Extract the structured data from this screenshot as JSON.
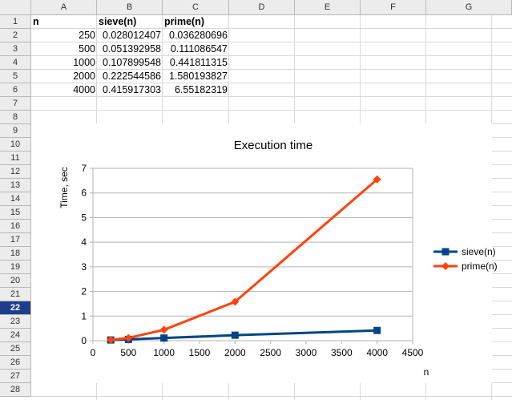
{
  "columns": [
    "A",
    "B",
    "C",
    "D",
    "E",
    "F",
    "G"
  ],
  "rows": [
    "1",
    "2",
    "3",
    "4",
    "5",
    "6",
    "7",
    "8",
    "9",
    "10",
    "11",
    "12",
    "13",
    "14",
    "15",
    "16",
    "17",
    "18",
    "19",
    "20",
    "21",
    "22",
    "23",
    "24",
    "25",
    "26",
    "27",
    "28"
  ],
  "active_row": "22",
  "cells": {
    "A1": "n",
    "B1": "sieve(n)",
    "C1": "prime(n)",
    "A2": "250",
    "B2": "0.028012407",
    "C2": "0.036280696",
    "A3": "500",
    "B3": "0.051392958",
    "C3": "0.111086547",
    "A4": "1000",
    "B4": "0.107899548",
    "C4": "0.441811315",
    "A5": "2000",
    "B5": "0.222544586",
    "C5": "1.580193827",
    "A6": "4000",
    "B6": "0.415917303",
    "C6": "6.55182319"
  },
  "chart_data": {
    "type": "line",
    "title": "Execution time",
    "xlabel": "n",
    "ylabel": "Time, sec",
    "xlim": [
      0,
      4500
    ],
    "ylim": [
      0,
      7
    ],
    "xticks": [
      "0",
      "500",
      "1000",
      "1500",
      "2000",
      "2500",
      "3000",
      "3500",
      "4000",
      "4500"
    ],
    "yticks": [
      "0",
      "1",
      "2",
      "3",
      "4",
      "5",
      "6",
      "7"
    ],
    "grid": true,
    "legend_position": "right",
    "x": [
      250,
      500,
      1000,
      2000,
      4000
    ],
    "series": [
      {
        "name": "sieve(n)",
        "values": [
          0.028012407,
          0.051392958,
          0.107899548,
          0.222544586,
          0.415917303
        ],
        "color": "#004586",
        "marker": "square"
      },
      {
        "name": "prime(n)",
        "values": [
          0.036280696,
          0.111086547,
          0.441811315,
          1.580193827,
          6.55182319
        ],
        "color": "#ff420e",
        "marker": "diamond"
      }
    ]
  }
}
